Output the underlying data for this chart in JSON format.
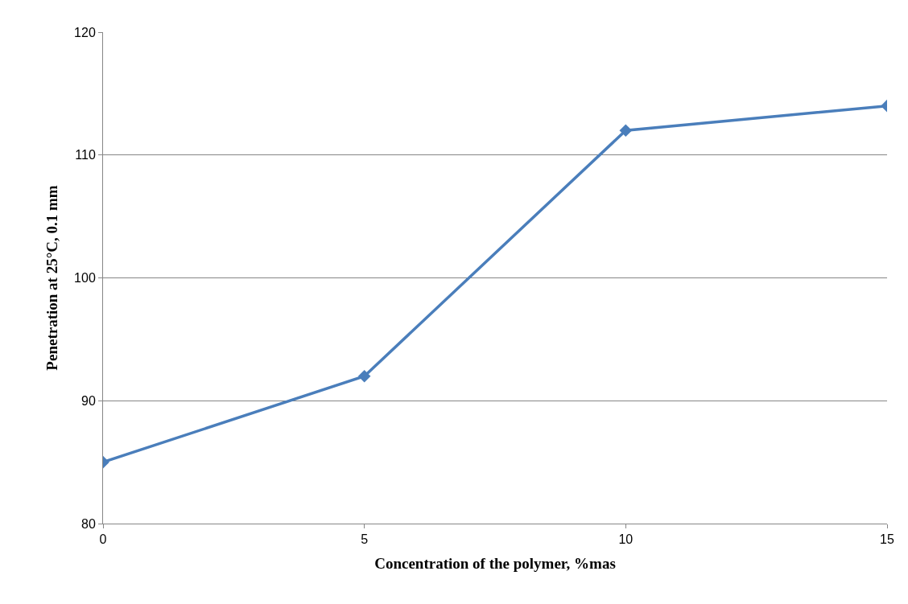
{
  "chart_data": {
    "type": "line",
    "xlabel": "Concentration of the polymer, %mas",
    "ylabel": "Penetration at 25°C, 0.1 mm",
    "x": [
      0,
      5,
      10,
      15
    ],
    "series": [
      {
        "color": "#4a7ebb",
        "values": [
          85,
          92,
          112,
          114
        ]
      }
    ],
    "xlim": [
      0,
      15
    ],
    "xticks": [
      0,
      5,
      10,
      15
    ],
    "ylim": [
      80,
      120
    ],
    "yticks": [
      80,
      90,
      100,
      110,
      120
    ],
    "grid": "y",
    "legend": false,
    "marker": "diamond",
    "line_style": "solid"
  }
}
